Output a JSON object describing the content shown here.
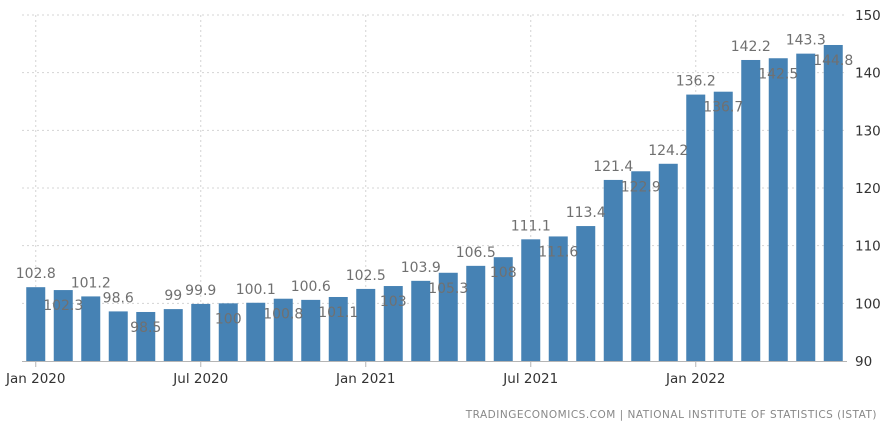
{
  "chart_data": {
    "type": "bar",
    "categories": [
      "Jan 2020",
      "Feb 2020",
      "Mar 2020",
      "Apr 2020",
      "May 2020",
      "Jun 2020",
      "Jul 2020",
      "Aug 2020",
      "Sep 2020",
      "Oct 2020",
      "Nov 2020",
      "Dec 2020",
      "Jan 2021",
      "Feb 2021",
      "Mar 2021",
      "Apr 2021",
      "May 2021",
      "Jun 2021",
      "Jul 2021",
      "Aug 2021",
      "Sep 2021",
      "Oct 2021",
      "Nov 2021",
      "Dec 2021",
      "Jan 2022",
      "Feb 2022",
      "Mar 2022",
      "Apr 2022",
      "May 2022",
      "Jun 2022"
    ],
    "values": [
      102.8,
      102.3,
      101.2,
      98.6,
      98.5,
      99.0,
      99.9,
      100.0,
      100.1,
      100.8,
      100.6,
      101.1,
      102.5,
      103.0,
      103.9,
      105.3,
      106.5,
      108.0,
      111.1,
      111.6,
      113.4,
      121.4,
      122.9,
      124.2,
      136.2,
      136.7,
      142.2,
      142.5,
      143.3,
      144.8
    ],
    "data_labels": [
      "102.8",
      "102.3",
      "101.2",
      "98.6",
      "98.5",
      "99",
      "99.9",
      "100",
      "100.1",
      "100.8",
      "100.6",
      "101.1",
      "102.5",
      "103",
      "103.9",
      "105.3",
      "106.5",
      "108",
      "111.1",
      "111.6",
      "113.4",
      "121.4",
      "122.9",
      "124.2",
      "136.2",
      "136.7",
      "142.2",
      "142.5",
      "143.3",
      "144.8"
    ],
    "label_positions": [
      "above",
      "inside",
      "above",
      "above",
      "inside",
      "above",
      "above",
      "inside",
      "above",
      "inside",
      "above",
      "inside",
      "above",
      "inside",
      "above",
      "inside",
      "above",
      "inside",
      "above",
      "inside",
      "above",
      "above",
      "inside",
      "above",
      "above",
      "inside",
      "above",
      "inside",
      "above",
      "inside"
    ],
    "x_tick_labels": [
      {
        "index": 0,
        "label": "Jan 2020"
      },
      {
        "index": 6,
        "label": "Jul 2020"
      },
      {
        "index": 12,
        "label": "Jan 2021"
      },
      {
        "index": 18,
        "label": "Jul 2021"
      },
      {
        "index": 24,
        "label": "Jan 2022"
      }
    ],
    "y_ticks": [
      90,
      100,
      110,
      120,
      130,
      140,
      150
    ],
    "ylim": [
      90,
      150
    ],
    "y_axis_side": "right",
    "grid": true,
    "title": "",
    "xlabel": "",
    "ylabel": "",
    "colors": {
      "bar": "#4682b4",
      "data_label": "#707070",
      "grid": "#d4d4d4"
    }
  },
  "source_note": "TRADINGECONOMICS.COM  |  NATIONAL INSTITUTE OF STATISTICS (ISTAT)"
}
